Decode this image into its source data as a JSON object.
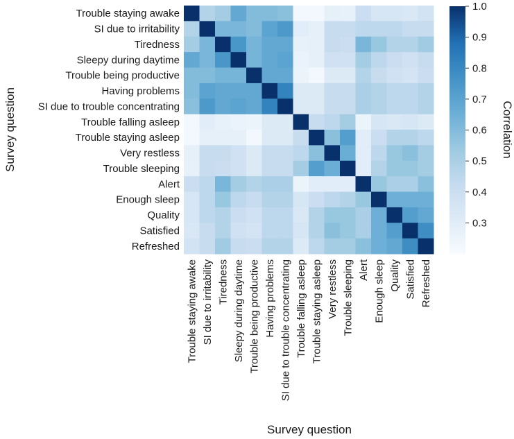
{
  "chart_data": {
    "type": "heatmap",
    "xlabel": "Survey question",
    "ylabel": "Survey question",
    "colorbar_label": "Correlation",
    "color_range": [
      0.2,
      1.0
    ],
    "colorbar_ticks": [
      "0.3",
      "0.4",
      "0.5",
      "0.6",
      "0.7",
      "0.8",
      "0.9",
      "1.0"
    ],
    "colorbar_tick_values": [
      0.3,
      0.4,
      0.5,
      0.6,
      0.7,
      0.8,
      0.9,
      1.0
    ],
    "labels": [
      "Trouble staying awake",
      "SI due to irritability",
      "Tiredness",
      "Sleepy during daytime",
      "Trouble being productive",
      "Having problems",
      "SI due to trouble concentrating",
      "Trouble falling asleep",
      "Trouble staying asleep",
      "Very restless",
      "Trouble sleeping",
      "Alert",
      "Enough sleep",
      "Quality",
      "Satisfied",
      "Refreshed"
    ],
    "matrix": [
      [
        1.0,
        0.48,
        0.52,
        0.68,
        0.6,
        0.6,
        0.58,
        0.22,
        0.22,
        0.28,
        0.27,
        0.4,
        0.35,
        0.35,
        0.33,
        0.37
      ],
      [
        0.48,
        1.0,
        0.62,
        0.62,
        0.6,
        0.7,
        0.74,
        0.3,
        0.28,
        0.42,
        0.42,
        0.45,
        0.45,
        0.45,
        0.42,
        0.42
      ],
      [
        0.52,
        0.62,
        1.0,
        0.75,
        0.63,
        0.68,
        0.68,
        0.27,
        0.28,
        0.42,
        0.4,
        0.62,
        0.55,
        0.48,
        0.48,
        0.53
      ],
      [
        0.68,
        0.62,
        0.75,
        1.0,
        0.63,
        0.68,
        0.7,
        0.26,
        0.28,
        0.38,
        0.38,
        0.52,
        0.45,
        0.4,
        0.38,
        0.42
      ],
      [
        0.6,
        0.6,
        0.63,
        0.63,
        1.0,
        0.68,
        0.68,
        0.25,
        0.22,
        0.32,
        0.32,
        0.48,
        0.42,
        0.38,
        0.36,
        0.4
      ],
      [
        0.6,
        0.7,
        0.68,
        0.68,
        0.68,
        1.0,
        0.82,
        0.32,
        0.32,
        0.42,
        0.42,
        0.5,
        0.48,
        0.45,
        0.45,
        0.48
      ],
      [
        0.58,
        0.74,
        0.68,
        0.7,
        0.68,
        0.82,
        1.0,
        0.32,
        0.32,
        0.42,
        0.42,
        0.5,
        0.48,
        0.45,
        0.45,
        0.48
      ],
      [
        0.22,
        0.3,
        0.27,
        0.26,
        0.25,
        0.32,
        0.32,
        1.0,
        0.42,
        0.45,
        0.52,
        0.25,
        0.35,
        0.33,
        0.35,
        0.32
      ],
      [
        0.22,
        0.28,
        0.28,
        0.28,
        0.22,
        0.32,
        0.32,
        0.42,
        1.0,
        0.58,
        0.72,
        0.3,
        0.4,
        0.48,
        0.48,
        0.45
      ],
      [
        0.28,
        0.42,
        0.42,
        0.38,
        0.32,
        0.42,
        0.42,
        0.45,
        0.58,
        1.0,
        0.66,
        0.3,
        0.45,
        0.55,
        0.58,
        0.52
      ],
      [
        0.27,
        0.42,
        0.4,
        0.38,
        0.32,
        0.42,
        0.42,
        0.52,
        0.72,
        0.66,
        1.0,
        0.3,
        0.48,
        0.55,
        0.55,
        0.52
      ],
      [
        0.4,
        0.45,
        0.62,
        0.52,
        0.48,
        0.5,
        0.5,
        0.25,
        0.3,
        0.3,
        0.3,
        1.0,
        0.55,
        0.5,
        0.5,
        0.58
      ],
      [
        0.35,
        0.45,
        0.55,
        0.45,
        0.42,
        0.48,
        0.48,
        0.35,
        0.4,
        0.45,
        0.48,
        0.55,
        1.0,
        0.65,
        0.65,
        0.65
      ],
      [
        0.35,
        0.45,
        0.48,
        0.4,
        0.38,
        0.45,
        0.45,
        0.33,
        0.48,
        0.55,
        0.55,
        0.5,
        0.65,
        1.0,
        0.72,
        0.68
      ],
      [
        0.33,
        0.42,
        0.48,
        0.38,
        0.36,
        0.45,
        0.45,
        0.35,
        0.48,
        0.58,
        0.55,
        0.5,
        0.65,
        0.72,
        1.0,
        0.78
      ],
      [
        0.37,
        0.42,
        0.53,
        0.42,
        0.4,
        0.48,
        0.48,
        0.32,
        0.45,
        0.52,
        0.52,
        0.58,
        0.65,
        0.68,
        0.78,
        1.0
      ]
    ]
  }
}
